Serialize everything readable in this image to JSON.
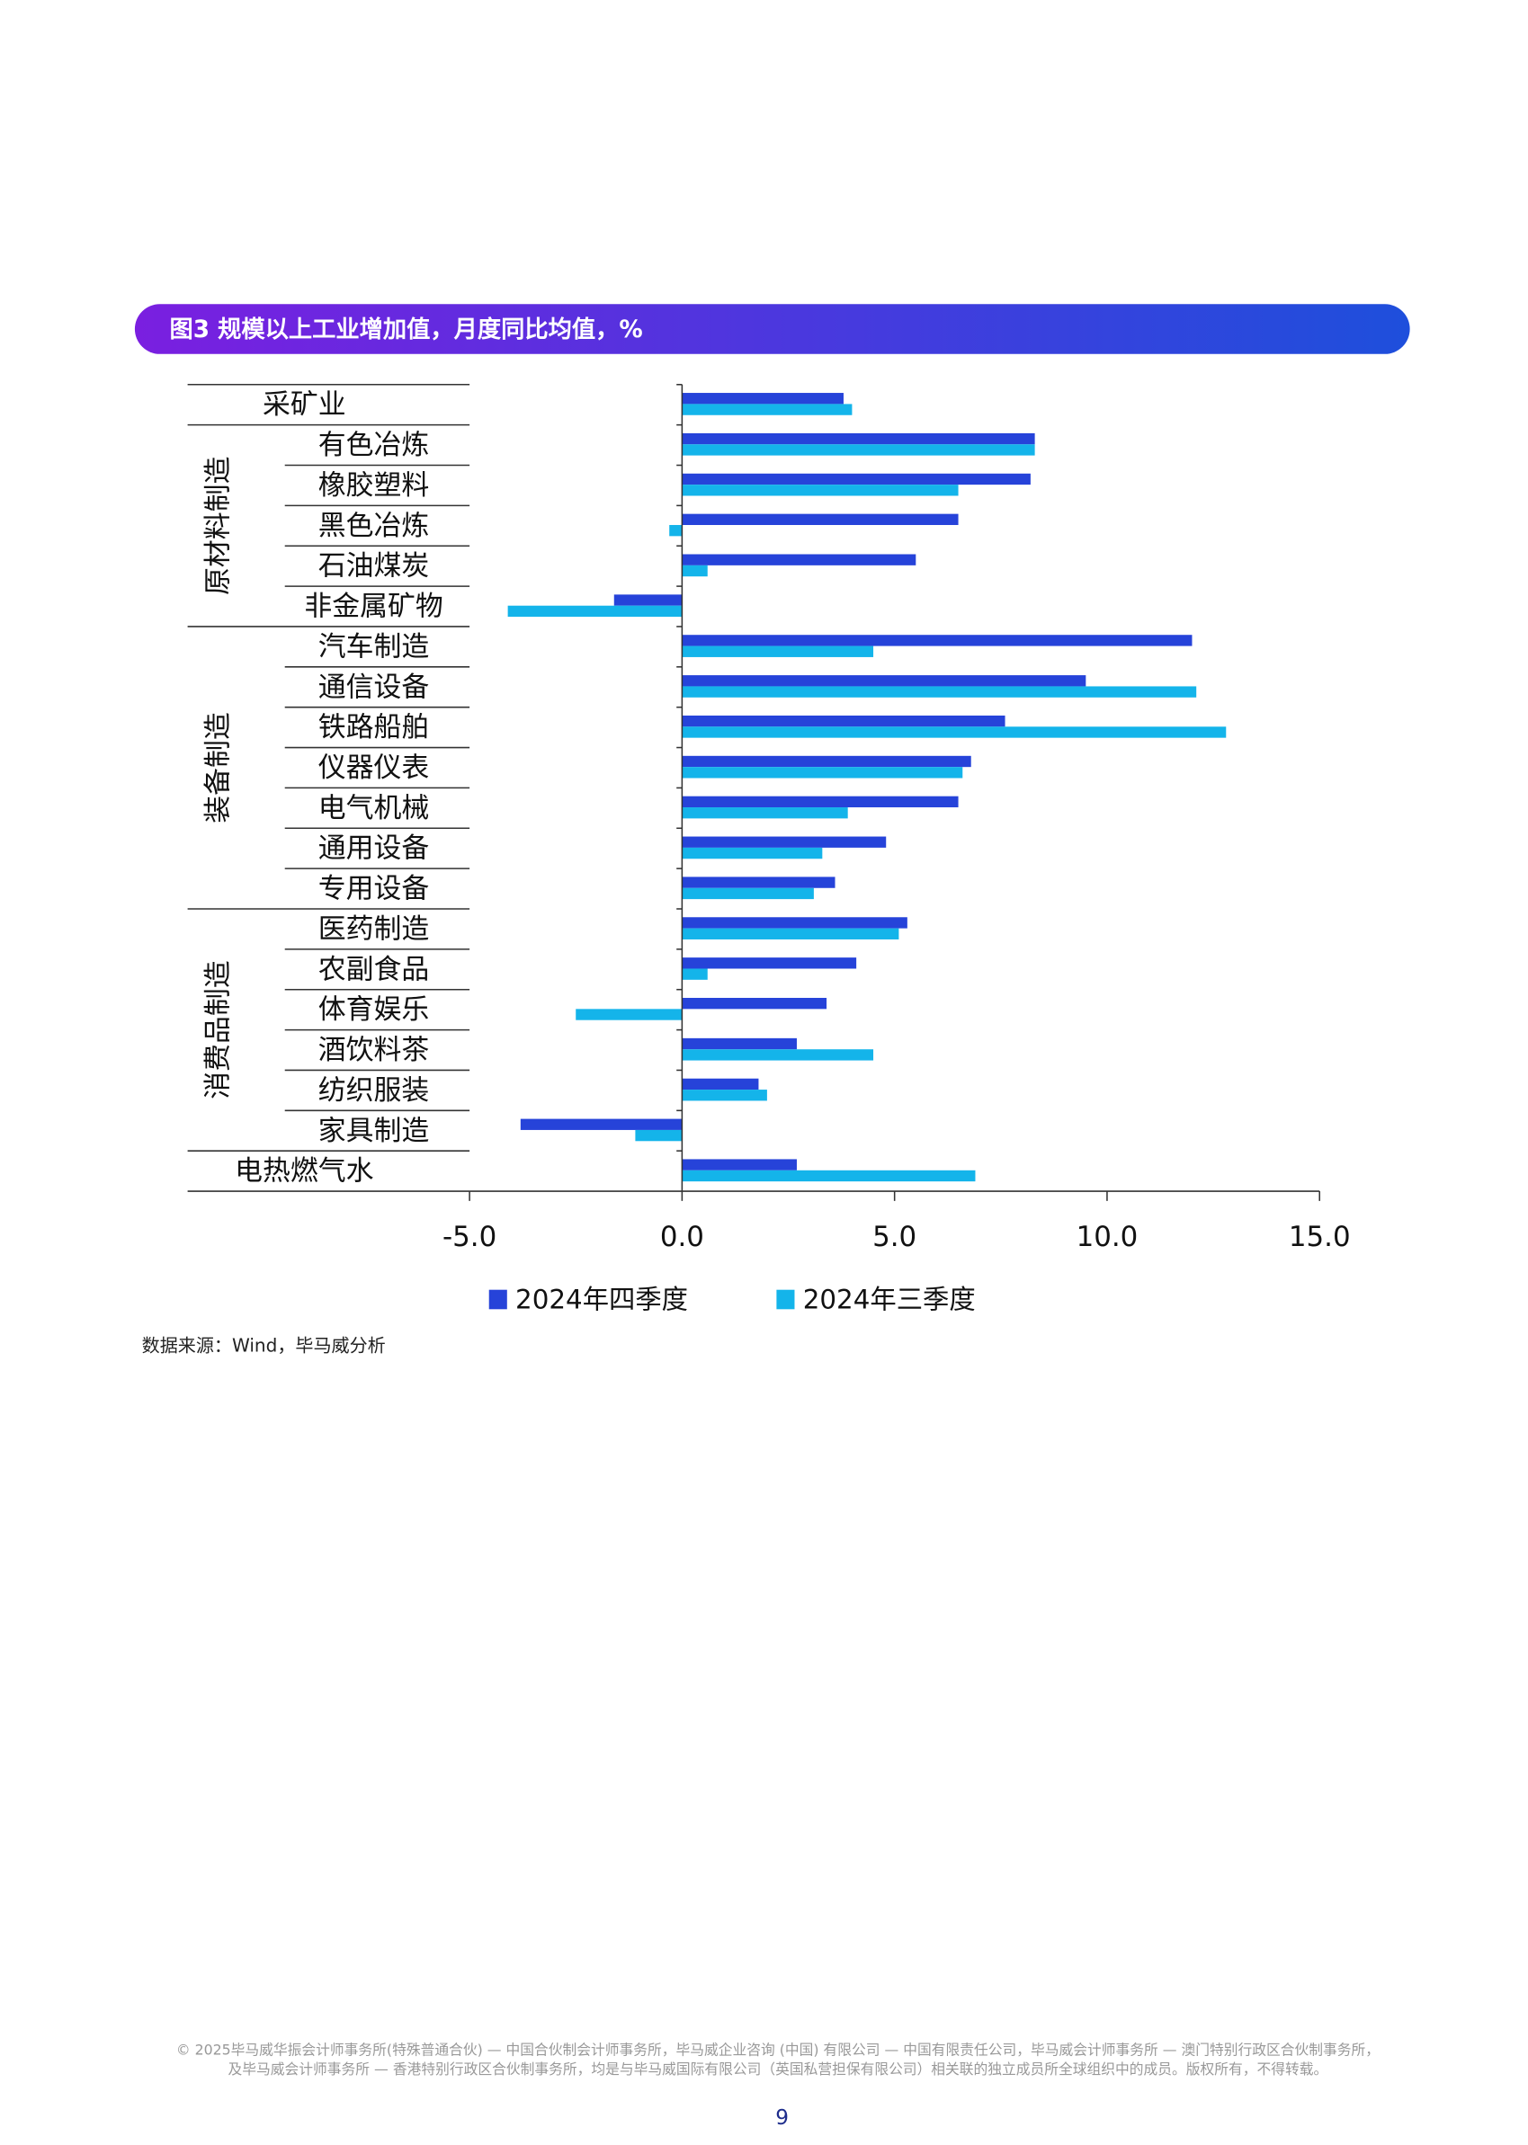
{
  "chart_data": {
    "type": "bar",
    "orientation": "horizontal",
    "title": "图3 规模以上工业增加值，月度同比均值，%",
    "categories": [
      "采矿业",
      "有色冶炼",
      "橡胶塑料",
      "黑色冶炼",
      "石油煤炭",
      "非金属矿物",
      "汽车制造",
      "通信设备",
      "铁路船舶",
      "仪器仪表",
      "电气机械",
      "通用设备",
      "专用设备",
      "医药制造",
      "农副食品",
      "体育娱乐",
      "酒饮料茶",
      "纺织服装",
      "家具制造",
      "电热燃气水"
    ],
    "groups": [
      {
        "name": "原材料制造",
        "members": [
          "有色冶炼",
          "橡胶塑料",
          "黑色冶炼",
          "石油煤炭",
          "非金属矿物"
        ]
      },
      {
        "name": "装备制造",
        "members": [
          "汽车制造",
          "通信设备",
          "铁路船舶",
          "仪器仪表",
          "电气机械",
          "通用设备",
          "专用设备"
        ]
      },
      {
        "name": "消费品制造",
        "members": [
          "医药制造",
          "农副食品",
          "体育娱乐",
          "酒饮料茶",
          "纺织服装",
          "家具制造"
        ]
      }
    ],
    "series": [
      {
        "name": "2024年四季度",
        "color": "#2643d9",
        "values": [
          3.8,
          8.3,
          8.2,
          6.5,
          5.5,
          -1.6,
          12.0,
          9.5,
          7.6,
          6.8,
          6.5,
          4.8,
          3.6,
          5.3,
          4.1,
          3.4,
          2.7,
          1.8,
          -3.8,
          2.7
        ]
      },
      {
        "name": "2024年三季度",
        "color": "#14b4ea",
        "values": [
          4.0,
          8.3,
          6.5,
          -0.3,
          0.6,
          -4.1,
          4.5,
          12.1,
          12.8,
          6.6,
          3.9,
          3.3,
          3.1,
          5.1,
          0.6,
          -2.5,
          4.5,
          2.0,
          -1.1,
          6.9
        ]
      }
    ],
    "xlim": [
      -5,
      15
    ],
    "xticks": [
      {
        "value": -5,
        "label": "-5.0"
      },
      {
        "value": 0,
        "label": "0.0"
      },
      {
        "value": 5,
        "label": "5.0"
      },
      {
        "value": 10,
        "label": "10.0"
      },
      {
        "value": 15,
        "label": "15.0"
      }
    ],
    "source": "数据来源：Wind，毕马威分析"
  },
  "footer": {
    "lines": [
      "© 2025毕马威华振会计师事务所(特殊普通合伙) — 中国合伙制会计师事务所，毕马威企业咨询 (中国) 有限公司 — 中国有限责任公司，毕马威会计师事务所 — 澳门特别行政区合伙制事务所，",
      "及毕马威会计师事务所 — 香港特别行政区合伙制事务所，均是与毕马威国际有限公司（英国私营担保有限公司）相关联的独立成员所全球组织中的成员。版权所有，不得转载。"
    ],
    "page_number": "9"
  }
}
